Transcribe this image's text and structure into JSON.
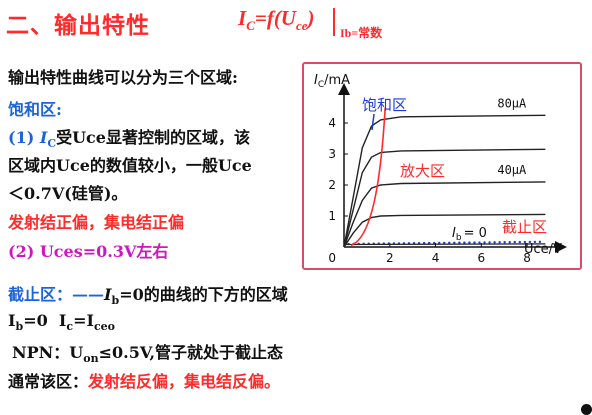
{
  "heading": {
    "title": "二、输出特性",
    "formula_lhs": "I",
    "formula_lhs_sub": "C",
    "formula_mid": "=f(U",
    "formula_mid_sub": "ce",
    "formula_close": ")",
    "formula_condition": "Ib=常数"
  },
  "body": {
    "intro": "输出特性曲线可以分为三个区域:",
    "sat_heading": "饱和区:",
    "sat_line1_prefix": "(1) ",
    "sat_line1_i": "I",
    "sat_line1_isub": "C",
    "sat_line1_rest": "受Uce显著控制的区域，该",
    "sat_line2": "区域内Uce的数值较小，一般Uce",
    "sat_line3": "＜0.7V(硅管)。",
    "sat_bias": "发射结正偏，集电结正偏",
    "sat_uces": "(2) Uces=0.3V左右",
    "cut_heading": "截止区：——",
    "cut_ib": "I",
    "cut_ib_sub": "b",
    "cut_rest": "=0的曲线的下方的区域",
    "ib_line_a": "I",
    "ib_line_a_sub": "b",
    "ib_line_b": "=0  I",
    "ib_line_b_sub": "c",
    "ib_line_c": "=I",
    "ib_line_c_sub": "ceo",
    "npn_a": "NPN：U",
    "npn_a_sub": "on",
    "npn_b": "≤0.5V,管子就处于截止态",
    "usual_prefix": "通常该区：",
    "usual_bias": "发射结反偏，集电结反偏。"
  },
  "chart_data": {
    "type": "line",
    "ylabel": "I",
    "ylabel_sub": "C",
    "ylabel_unit": "/mA",
    "xlabel": "Uce/V",
    "x_ticks": [
      "2",
      "4",
      "6",
      "8"
    ],
    "y_ticks": [
      "1",
      "2",
      "3",
      "4"
    ],
    "origin_label": "0",
    "xlim": [
      0,
      9
    ],
    "ylim": [
      0,
      5
    ],
    "series": [
      {
        "name": "80μA",
        "points": [
          [
            0,
            0
          ],
          [
            0.4,
            1.6
          ],
          [
            0.8,
            3.2
          ],
          [
            1.2,
            3.9
          ],
          [
            1.6,
            4.1
          ],
          [
            2.5,
            4.2
          ],
          [
            8.8,
            4.25
          ]
        ]
      },
      {
        "name": "",
        "points": [
          [
            0,
            0
          ],
          [
            0.4,
            1.2
          ],
          [
            0.8,
            2.4
          ],
          [
            1.2,
            2.9
          ],
          [
            1.6,
            3.05
          ],
          [
            2.5,
            3.1
          ],
          [
            8.8,
            3.15
          ]
        ]
      },
      {
        "name": "40μA",
        "points": [
          [
            0,
            0
          ],
          [
            0.4,
            0.8
          ],
          [
            0.8,
            1.5
          ],
          [
            1.2,
            1.9
          ],
          [
            1.6,
            2.0
          ],
          [
            2.5,
            2.05
          ],
          [
            8.8,
            2.1
          ]
        ]
      },
      {
        "name": "",
        "points": [
          [
            0,
            0
          ],
          [
            0.4,
            0.45
          ],
          [
            0.8,
            0.8
          ],
          [
            1.2,
            0.95
          ],
          [
            1.6,
            1.0
          ],
          [
            2.5,
            1.02
          ],
          [
            8.8,
            1.05
          ]
        ]
      }
    ],
    "ib_zero_label": "I",
    "ib_zero_sub": "b",
    "ib_zero_value": "= 0",
    "regions": {
      "saturation": "饱和区",
      "amplification": "放大区",
      "cutoff": "截止区"
    },
    "colors": {
      "curves": "#222222",
      "boundary": "#ff2a2a",
      "cutoff_dots": "#1a3bd8",
      "frame": "#d84c6a"
    }
  }
}
